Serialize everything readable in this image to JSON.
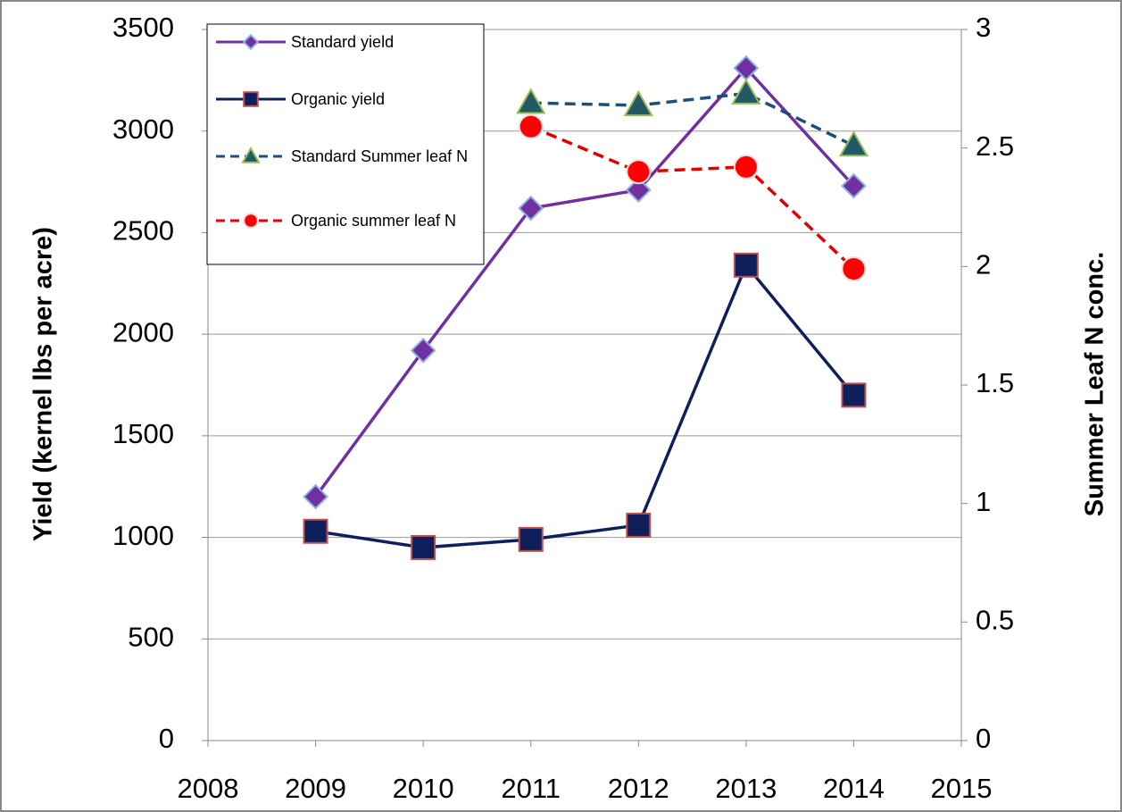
{
  "chart_data": {
    "type": "line",
    "y_label": "Yield (kernel lbs per acre)",
    "y2_label": "Summer Leaf N conc.",
    "x": [
      2009,
      2010,
      2011,
      2012,
      2013,
      2014
    ],
    "xlim": [
      2008,
      2015
    ],
    "xticks": [
      2008,
      2009,
      2010,
      2011,
      2012,
      2013,
      2014,
      2015
    ],
    "ylim": [
      0,
      3500
    ],
    "yticks": [
      0,
      500,
      1000,
      1500,
      2000,
      2500,
      3000,
      3500
    ],
    "y2lim": [
      0,
      3
    ],
    "y2ticks": [
      0,
      0.5,
      1,
      1.5,
      2,
      2.5,
      3
    ],
    "grid": true,
    "legend": "upper left",
    "series": [
      {
        "name": "Standard yield",
        "color": "#7030a0",
        "marker": "diamond",
        "dashed": false,
        "values": [
          1200,
          1920,
          2620,
          2710,
          3310,
          2730
        ]
      },
      {
        "name": "Organic yield",
        "color": "#0f1f5c",
        "marker": "square",
        "dashed": false,
        "values": [
          1030,
          950,
          990,
          1060,
          2340,
          1700
        ]
      },
      {
        "name": "Standard Summer leaf N",
        "color": "#1f4e79",
        "marker": "triangle",
        "dashed": true,
        "axis": "y2",
        "values": [
          null,
          null,
          2.69,
          2.68,
          2.73,
          2.51
        ]
      },
      {
        "name": "Organic summer leaf N",
        "color": "#e00000",
        "marker": "circle",
        "dashed": true,
        "axis": "y2",
        "values": [
          null,
          null,
          2.59,
          2.4,
          2.42,
          1.99
        ]
      }
    ]
  }
}
